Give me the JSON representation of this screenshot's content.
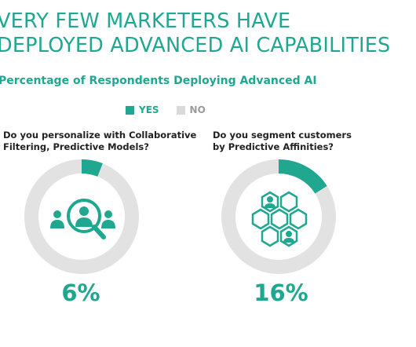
{
  "title_lines": [
    "VERY FEW MARKETERS HAVE",
    "DEPLOYED ADVANCED AI CAPABILITIES"
  ],
  "subtitle": "Percentage of Respondents Deploying Advanced AI",
  "legend": [
    {
      "label": "YES",
      "color": "#1fa88f"
    },
    {
      "label": "NO",
      "color": "#d9d9d9"
    }
  ],
  "colors": {
    "accent": "#1fa88f",
    "track": "#e2e2e2",
    "text": "#222222"
  },
  "chart_data": [
    {
      "type": "pie",
      "question": "Do you personalize with Collaborative\nFiltering, Predictive Models?",
      "slices": [
        {
          "label": "YES",
          "value": 6
        },
        {
          "label": "NO",
          "value": 94
        }
      ],
      "value_label": "6%",
      "icon": "people-magnifier-icon"
    },
    {
      "type": "pie",
      "question": "Do you segment customers\nby Predictive Affinities?",
      "slices": [
        {
          "label": "YES",
          "value": 16
        },
        {
          "label": "NO",
          "value": 84
        }
      ],
      "value_label": "16%",
      "icon": "hexagon-network-icon"
    }
  ]
}
